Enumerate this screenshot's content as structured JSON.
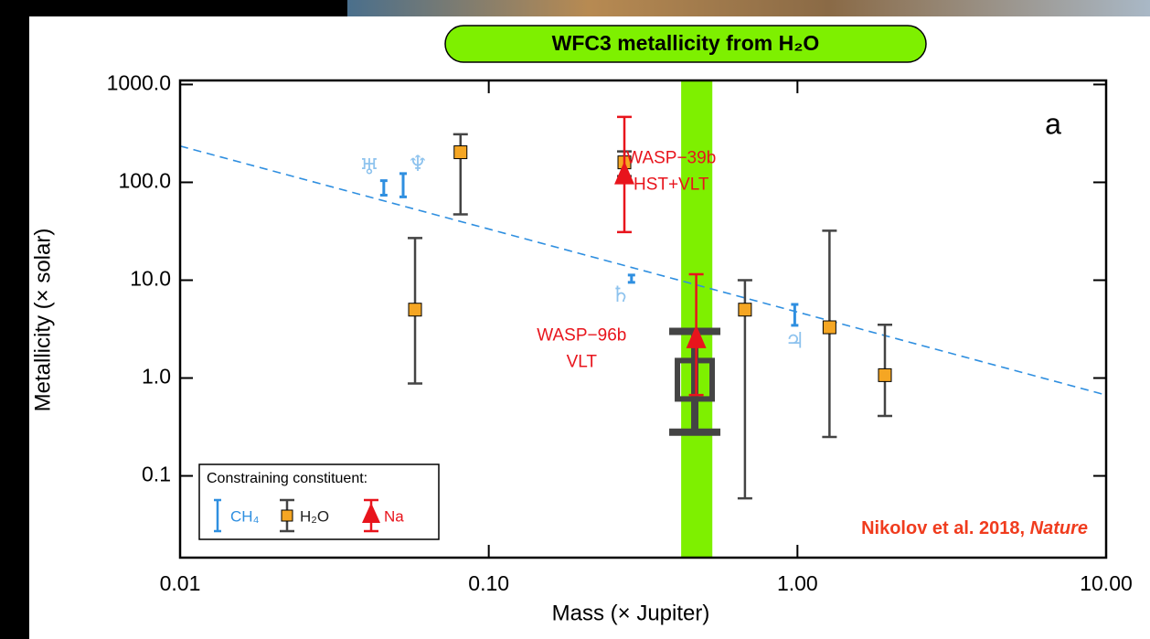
{
  "chart_data": {
    "type": "scatter",
    "title": "WFC3 metallicity from H₂O",
    "x_label": "Mass (× Jupiter)",
    "y_label": "Metallicity (× solar)",
    "xscale": "log",
    "yscale": "log",
    "xlim": [
      0.01,
      10
    ],
    "ylim": [
      0.0146,
      1100
    ],
    "xticks": [
      0.01,
      {
        "value": 0.1,
        "label": "0.10"
      },
      {
        "value": 1,
        "label": "1.00"
      },
      {
        "value": 10,
        "label": "10.00"
      }
    ],
    "yticks": [
      0.1,
      {
        "value": 1,
        "label": "1.0"
      },
      {
        "value": 10,
        "label": "10.0"
      },
      {
        "value": 100,
        "label": "100.0"
      },
      {
        "value": 1000,
        "label": "1000.0"
      }
    ],
    "legend": {
      "title": "Constraining constituent:",
      "location": "lower left"
    },
    "series": [
      {
        "name": "CH₄",
        "color": "#2f8fe0",
        "marker": "none",
        "x": [
          0.0457,
          0.0528,
          0.29,
          0.98
        ],
        "values": [
          88,
          91,
          10.3,
          4.5
        ],
        "lower": [
          74,
          71,
          9.5,
          3.46
        ],
        "upper": [
          104,
          123,
          11.3,
          5.66
        ],
        "point_labels": [
          "♅",
          "♆",
          "♄",
          "♃"
        ],
        "label_color": "#8ec3ee"
      },
      {
        "name": "H₂O",
        "color": "#444444",
        "marker": "square",
        "marker_color": "#f5a623",
        "x": [
          0.0577,
          0.081,
          0.275,
          0.676,
          1.27,
          1.92
        ],
        "values": [
          5.0,
          203,
          160,
          5.0,
          3.3,
          1.07
        ],
        "lower": [
          0.88,
          47,
          116,
          0.059,
          0.25,
          0.41
        ],
        "upper": [
          27,
          310,
          207,
          10,
          32,
          3.5
        ]
      },
      {
        "name": "Na",
        "color": "#e8141c",
        "marker": "triangle",
        "x": [
          0.275,
          0.47
        ],
        "values": [
          118,
          2.5
        ],
        "lower": [
          31,
          0.67
        ],
        "upper": [
          467,
          11.5
        ]
      }
    ],
    "wasp96b_h2o": {
      "x": 0.465,
      "value": 0.96,
      "lower": 0.28,
      "upper": 3.0,
      "color": "#444444"
    },
    "mass_band": {
      "range": [
        0.42,
        0.53
      ],
      "color": "#7ef000"
    },
    "trend": {
      "x": [
        0.01,
        10
      ],
      "values": [
        235,
        0.67
      ],
      "color": "#2f8fe0"
    },
    "annotations": [
      {
        "text": "WASP−39b",
        "x": 0.39,
        "y": 175,
        "color": "#e8141c"
      },
      {
        "text": "HST+VLT",
        "x": 0.39,
        "y": 94,
        "color": "#e8141c"
      },
      {
        "text": "WASP−96b",
        "x": 0.2,
        "y": 2.7,
        "color": "#e8141c"
      },
      {
        "text": "VLT",
        "x": 0.2,
        "y": 1.45,
        "color": "#e8141c"
      }
    ],
    "panel_label": "a",
    "citation": {
      "text": "Nikolov et al. 2018,",
      "journal": "Nature",
      "color": "#f03c1e"
    }
  }
}
